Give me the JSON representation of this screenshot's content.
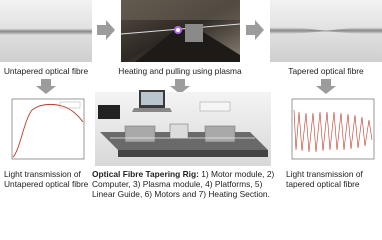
{
  "panels": {
    "untapered": {
      "label": "Untapered optical fibre"
    },
    "heating": {
      "label": "Heating and pulling using plasma"
    },
    "tapered": {
      "label": "Tapered optical fibre"
    }
  },
  "plots": {
    "untapered": {
      "caption": [
        "Light transmission of",
        "Untapered optical fibre"
      ]
    },
    "tapered": {
      "caption": [
        "Light transmission of",
        "tapered optical fibre"
      ]
    }
  },
  "rig": {
    "caption_title": "Optical Fibre Tapering Rig:",
    "caption_lines": [
      " 1) Motor module, 2)",
      "Computer, 3) Plasma module, 4) Platforms, 5)",
      "Linear Guide, 6) Motors and 7) Heating Section."
    ]
  }
}
